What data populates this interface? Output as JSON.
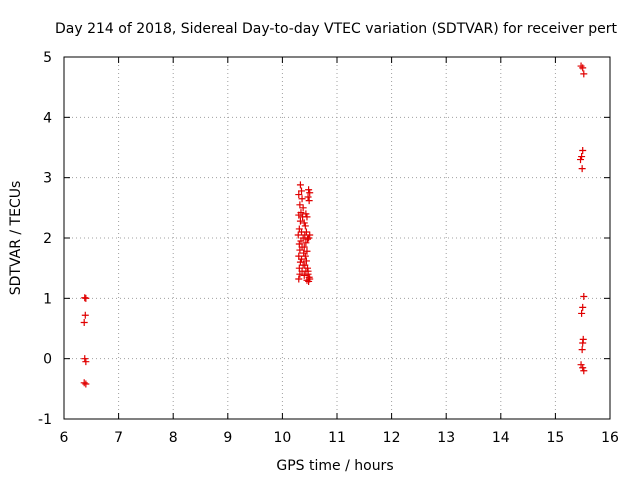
{
  "chart_data": {
    "type": "scatter",
    "title": "Day 214 of 2018, Sidereal Day-to-day VTEC variation (SDTVAR) for receiver pert",
    "xlabel": "GPS time / hours",
    "ylabel": "SDTVAR / TECUs",
    "xlim": [
      6,
      16
    ],
    "ylim": [
      -1,
      5
    ],
    "xticks": [
      "6",
      "7",
      "8",
      "9",
      "10",
      "11",
      "12",
      "13",
      "14",
      "15",
      "16"
    ],
    "yticks": [
      "-1",
      "0",
      "1",
      "2",
      "3",
      "4",
      "5"
    ],
    "grid": true,
    "marker": "+",
    "color": "#e00000",
    "series": [
      {
        "name": "SDTVAR",
        "points": [
          [
            6.38,
            1.01
          ],
          [
            6.4,
            1.0
          ],
          [
            6.39,
            0.72
          ],
          [
            6.37,
            0.6
          ],
          [
            6.38,
            0.0
          ],
          [
            6.4,
            -0.05
          ],
          [
            6.37,
            -0.4
          ],
          [
            6.4,
            -0.42
          ],
          [
            10.33,
            2.88
          ],
          [
            10.35,
            2.78
          ],
          [
            10.3,
            2.72
          ],
          [
            10.36,
            2.65
          ],
          [
            10.32,
            2.55
          ],
          [
            10.38,
            2.5
          ],
          [
            10.34,
            2.42
          ],
          [
            10.3,
            2.38
          ],
          [
            10.37,
            2.35
          ],
          [
            10.33,
            2.28
          ],
          [
            10.4,
            2.25
          ],
          [
            10.31,
            2.15
          ],
          [
            10.35,
            2.1
          ],
          [
            10.29,
            2.05
          ],
          [
            10.38,
            2.0
          ],
          [
            10.34,
            1.95
          ],
          [
            10.31,
            1.9
          ],
          [
            10.36,
            1.85
          ],
          [
            10.32,
            1.8
          ],
          [
            10.39,
            1.75
          ],
          [
            10.3,
            1.7
          ],
          [
            10.35,
            1.65
          ],
          [
            10.33,
            1.6
          ],
          [
            10.38,
            1.55
          ],
          [
            10.31,
            1.5
          ],
          [
            10.36,
            1.45
          ],
          [
            10.32,
            1.4
          ],
          [
            10.3,
            1.32
          ],
          [
            10.43,
            2.4
          ],
          [
            10.45,
            2.35
          ],
          [
            10.42,
            2.2
          ],
          [
            10.44,
            2.1
          ],
          [
            10.41,
            2.05
          ],
          [
            10.46,
            1.98
          ],
          [
            10.43,
            1.92
          ],
          [
            10.4,
            1.85
          ],
          [
            10.45,
            1.78
          ],
          [
            10.42,
            1.7
          ],
          [
            10.44,
            1.62
          ],
          [
            10.41,
            1.55
          ],
          [
            10.46,
            1.5
          ],
          [
            10.43,
            1.45
          ],
          [
            10.4,
            1.38
          ],
          [
            10.45,
            1.3
          ],
          [
            10.48,
            2.8
          ],
          [
            10.5,
            2.75
          ],
          [
            10.47,
            2.68
          ],
          [
            10.49,
            2.62
          ],
          [
            10.5,
            2.05
          ],
          [
            10.48,
            2.0
          ],
          [
            10.47,
            1.4
          ],
          [
            10.49,
            1.35
          ],
          [
            10.5,
            1.32
          ],
          [
            10.48,
            1.28
          ],
          [
            10.47,
            1.45
          ],
          [
            15.47,
            4.85
          ],
          [
            15.5,
            4.82
          ],
          [
            15.52,
            4.72
          ],
          [
            15.5,
            3.45
          ],
          [
            15.48,
            3.35
          ],
          [
            15.46,
            3.3
          ],
          [
            15.49,
            3.15
          ],
          [
            15.52,
            1.03
          ],
          [
            15.5,
            0.85
          ],
          [
            15.48,
            0.75
          ],
          [
            15.51,
            0.32
          ],
          [
            15.5,
            0.26
          ],
          [
            15.49,
            0.15
          ],
          [
            15.47,
            -0.1
          ],
          [
            15.5,
            -0.15
          ],
          [
            15.52,
            -0.2
          ]
        ]
      }
    ]
  }
}
